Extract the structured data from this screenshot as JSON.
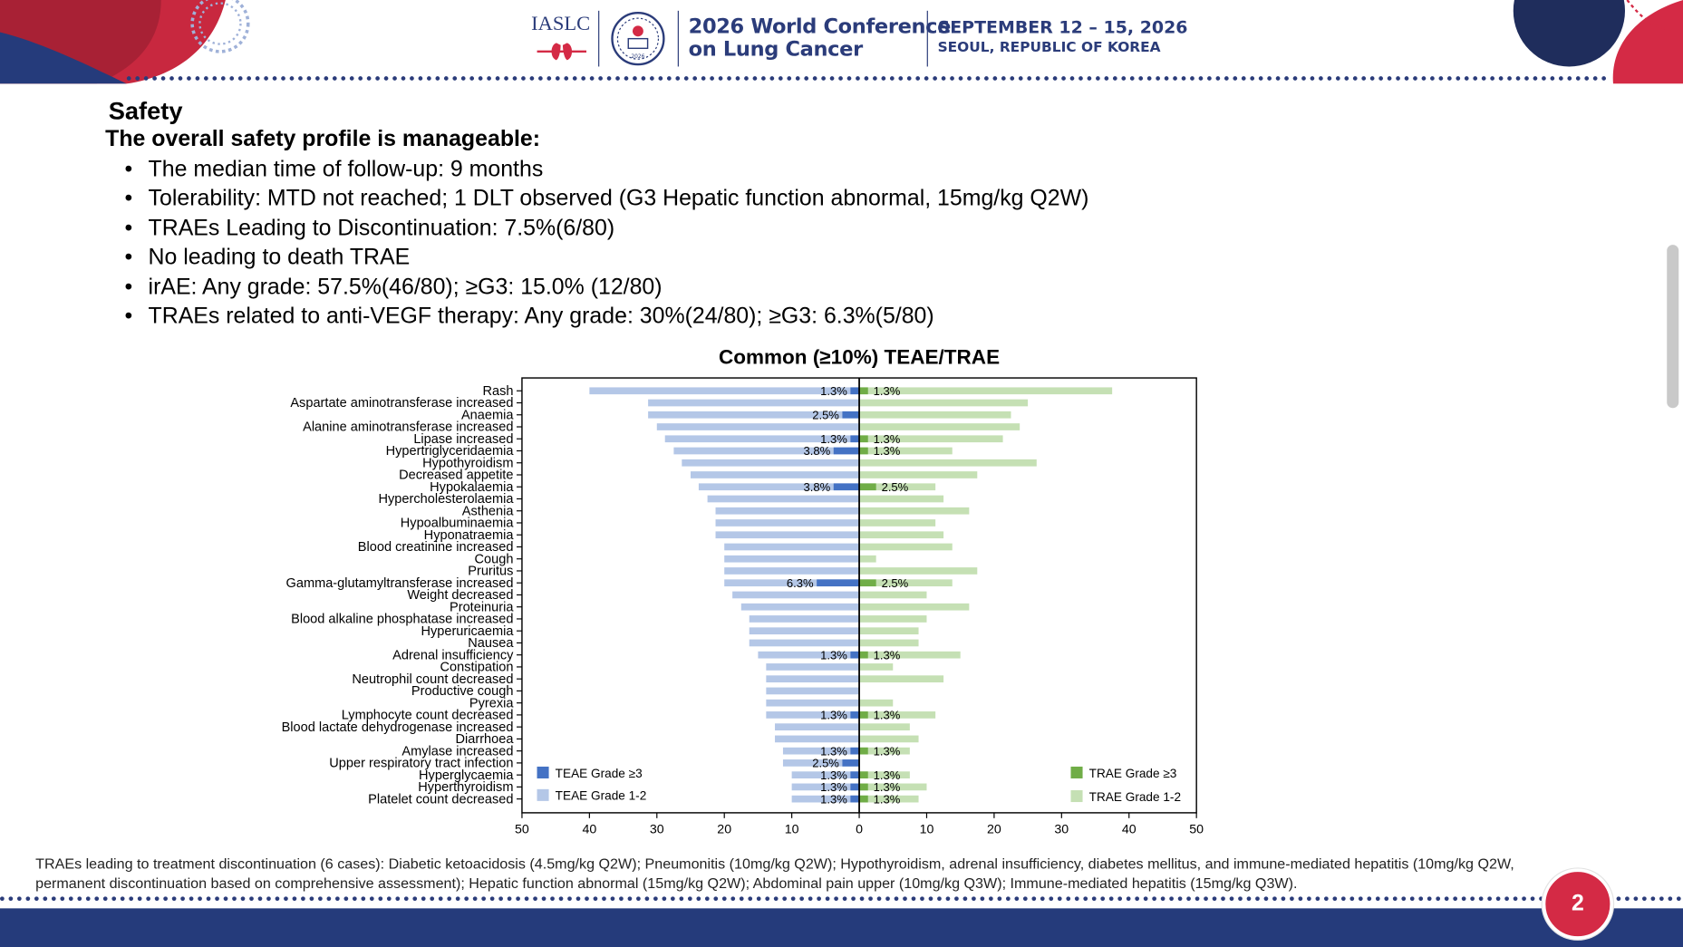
{
  "header": {
    "org_logo_text": "IASLC",
    "conference_title_line1": "2026 World Conference",
    "conference_title_line2": "on Lung Cancer",
    "dates": "SEPTEMBER 12 – 15, 2026",
    "location": "SEOUL, REPUBLIC OF KOREA",
    "seal_year": "2026"
  },
  "slide": {
    "title": "Safety",
    "subtitle": "The overall safety profile is manageable:",
    "bullets": [
      "The median time of follow-up: 9 months",
      "Tolerability: MTD not reached; 1 DLT observed (G3 Hepatic function abnormal, 15mg/kg Q2W)",
      "TRAEs Leading to Discontinuation: 7.5%(6/80)",
      "No leading to death TRAE",
      "irAE: Any grade: 57.5%(46/80); ≥G3: 15.0% (12/80)",
      "TRAEs related to anti-VEGF therapy: Any grade: 30%(24/80); ≥G3: 6.3%(5/80)"
    ],
    "footnote": "TRAEs leading to treatment discontinuation (6 cases): Diabetic ketoacidosis (4.5mg/kg Q2W); Pneumonitis (10mg/kg Q2W); Hypothyroidism, adrenal insufficiency, diabetes mellitus, and immune-mediated hepatitis (10mg/kg Q2W, permanent discontinuation based on comprehensive assessment); Hepatic function abnormal (15mg/kg Q2W); Abdominal pain upper (10mg/kg Q3W); Immune-mediated hepatitis (15mg/kg Q3W).",
    "bullet_glyph": "•",
    "page_number": "2"
  },
  "colors": {
    "navy": "#253b7b",
    "red": "#d42a45",
    "teae_g3": "#4472c4",
    "teae_g12": "#b4c7e7",
    "trae_g3": "#70ad47",
    "trae_g12": "#c5e0b4"
  },
  "chart_data": {
    "type": "bar",
    "orientation": "horizontal-butterfly",
    "title": "Common (≥10%) TEAE/TRAE",
    "xlim": [
      -50,
      50
    ],
    "x_ticks": [
      50,
      40,
      30,
      20,
      10,
      0,
      10,
      20,
      30,
      40,
      50
    ],
    "legend": {
      "left": [
        "TEAE Grade ≥3",
        "TEAE Grade 1-2"
      ],
      "right": [
        "TRAE Grade ≥3",
        "TRAE Grade 1-2"
      ],
      "placement": "bottom-left and bottom-right"
    },
    "categories": [
      "Rash",
      "Aspartate aminotransferase increased",
      "Anaemia",
      "Alanine aminotransferase increased",
      "Lipase increased",
      "Hypertriglyceridaemia",
      "Hypothyroidism",
      "Decreased appetite",
      "Hypokalaemia",
      "Hypercholesterolaemia",
      "Asthenia",
      "Hypoalbuminaemia",
      "Hyponatraemia",
      "Blood creatinine increased",
      "Cough",
      "Pruritus",
      "Gamma-glutamyltransferase increased",
      "Weight decreased",
      "Proteinuria",
      "Blood alkaline phosphatase increased",
      "Hyperuricaemia",
      "Nausea",
      "Adrenal insufficiency",
      "Constipation",
      "Neutrophil count decreased",
      "Productive cough",
      "Pyrexia",
      "Lymphocyte count decreased",
      "Blood lactate dehydrogenase increased",
      "Diarrhoea",
      "Amylase increased",
      "Upper respiratory tract infection",
      "Hyperglycaemia",
      "Hyperthyroidism",
      "Platelet count decreased"
    ],
    "series": [
      {
        "name": "TEAE Grade 1-2",
        "side": "left",
        "values": [
          40,
          31.3,
          31.3,
          30,
          28.8,
          27.5,
          26.3,
          25,
          23.8,
          22.5,
          21.3,
          21.3,
          21.3,
          20,
          20,
          20,
          20,
          18.8,
          17.5,
          16.3,
          16.3,
          16.3,
          15,
          13.8,
          13.8,
          13.8,
          13.8,
          13.8,
          12.5,
          12.5,
          11.3,
          11.3,
          10,
          10,
          10
        ]
      },
      {
        "name": "TEAE Grade ≥3",
        "side": "left",
        "values": [
          1.3,
          0,
          2.5,
          0,
          1.3,
          3.8,
          0,
          0,
          3.8,
          0,
          0,
          0,
          0,
          0,
          0,
          0,
          6.3,
          0,
          0,
          0,
          0,
          0,
          1.3,
          0,
          0,
          0,
          0,
          1.3,
          0,
          0,
          1.3,
          2.5,
          1.3,
          1.3,
          1.3
        ]
      },
      {
        "name": "TRAE Grade 1-2",
        "side": "right",
        "values": [
          37.5,
          25,
          22.5,
          23.8,
          21.3,
          13.8,
          26.3,
          17.5,
          11.3,
          12.5,
          16.3,
          11.3,
          12.5,
          13.8,
          2.5,
          17.5,
          13.8,
          10,
          16.3,
          10,
          8.8,
          8.8,
          15,
          5,
          12.5,
          0,
          5,
          11.3,
          7.5,
          8.8,
          7.5,
          0,
          7.5,
          10,
          8.8
        ]
      },
      {
        "name": "TRAE Grade ≥3",
        "side": "right",
        "values": [
          1.3,
          0,
          0,
          0,
          1.3,
          1.3,
          0,
          0,
          2.5,
          0,
          0,
          0,
          0,
          0,
          0,
          0,
          2.5,
          0,
          0,
          0,
          0,
          0,
          1.3,
          0,
          0,
          0,
          0,
          1.3,
          0,
          0,
          1.3,
          0,
          1.3,
          1.3,
          1.3
        ]
      }
    ],
    "value_labels_left": [
      "1.3%",
      "",
      "2.5%",
      "",
      "1.3%",
      "3.8%",
      "",
      "",
      "3.8%",
      "",
      "",
      "",
      "",
      "",
      "",
      "",
      "6.3%",
      "",
      "",
      "",
      "",
      "",
      "1.3%",
      "",
      "",
      "",
      "",
      "1.3%",
      "",
      "",
      "1.3%",
      "2.5%",
      "1.3%",
      "1.3%",
      "1.3%"
    ],
    "value_labels_right": [
      "1.3%",
      "",
      "",
      "",
      "1.3%",
      "1.3%",
      "",
      "",
      "2.5%",
      "",
      "",
      "",
      "",
      "",
      "",
      "",
      "2.5%",
      "",
      "",
      "",
      "",
      "",
      "1.3%",
      "",
      "",
      "",
      "",
      "1.3%",
      "",
      "",
      "1.3%",
      "",
      "1.3%",
      "1.3%",
      "1.3%"
    ]
  }
}
